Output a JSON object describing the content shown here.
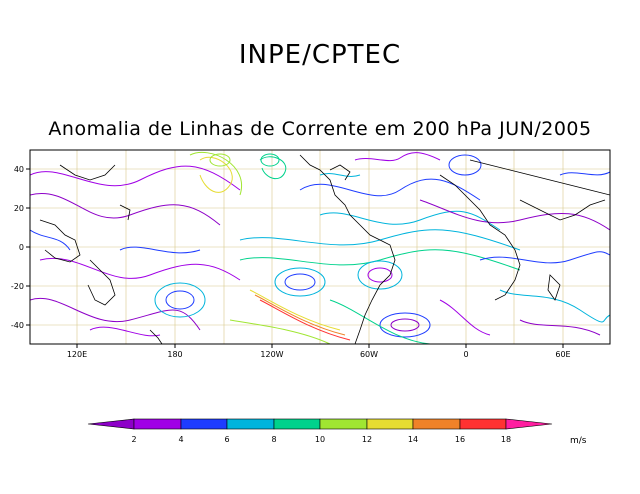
{
  "header": {
    "agency": "INPE/CPTEC"
  },
  "plot": {
    "title": "Anomalia de Linhas de Corrente em 200 hPa JUN/2005",
    "lon_labels": [
      "120E",
      "180",
      "120W",
      "60W",
      "0",
      "60E"
    ],
    "lat_labels": [
      "40",
      "20",
      "0",
      "-20",
      "-40"
    ]
  },
  "colorbar": {
    "ticks": [
      "2",
      "4",
      "6",
      "8",
      "10",
      "12",
      "14",
      "16",
      "18"
    ],
    "colors": [
      "#8d00c8",
      "#a000e6",
      "#1e3cff",
      "#00b4dc",
      "#00d28c",
      "#a0e632",
      "#e6dc32",
      "#f08228",
      "#ff3232",
      "#ff1ea0"
    ],
    "units": "m/s"
  }
}
